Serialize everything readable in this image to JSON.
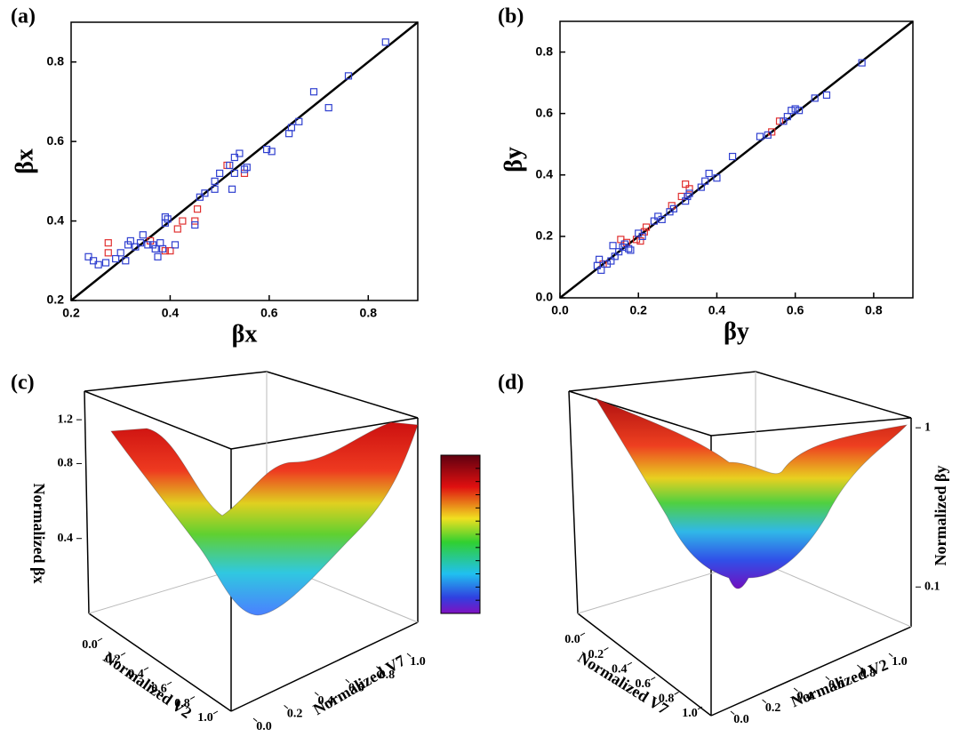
{
  "chart_data": [
    {
      "type": "scatter",
      "label": "(a)",
      "xlabel": "βx",
      "ylabel": "βx",
      "xlim": [
        0.2,
        0.9
      ],
      "ylim": [
        0.2,
        0.9
      ],
      "xticks": [
        0.2,
        0.4,
        0.6,
        0.8
      ],
      "yticks": [
        0.2,
        0.4,
        0.6,
        0.8
      ],
      "series": [
        {
          "color": "#e03030",
          "x": [
            0.275,
            0.275,
            0.36,
            0.39,
            0.4,
            0.415,
            0.425,
            0.45,
            0.455,
            0.515,
            0.55
          ],
          "values": [
            0.345,
            0.32,
            0.35,
            0.325,
            0.325,
            0.38,
            0.4,
            0.4,
            0.43,
            0.54,
            0.52
          ]
        },
        {
          "color": "#3040d0",
          "x": [
            0.235,
            0.245,
            0.255,
            0.27,
            0.29,
            0.3,
            0.31,
            0.315,
            0.32,
            0.33,
            0.34,
            0.345,
            0.355,
            0.365,
            0.37,
            0.375,
            0.38,
            0.385,
            0.39,
            0.39,
            0.395,
            0.41,
            0.45,
            0.46,
            0.47,
            0.49,
            0.49,
            0.5,
            0.52,
            0.525,
            0.53,
            0.53,
            0.54,
            0.55,
            0.555,
            0.595,
            0.605,
            0.64,
            0.645,
            0.66,
            0.69,
            0.72,
            0.76,
            0.835
          ],
          "values": [
            0.31,
            0.3,
            0.29,
            0.295,
            0.305,
            0.32,
            0.3,
            0.34,
            0.35,
            0.335,
            0.345,
            0.365,
            0.34,
            0.34,
            0.33,
            0.31,
            0.345,
            0.33,
            0.41,
            0.395,
            0.405,
            0.34,
            0.39,
            0.46,
            0.47,
            0.48,
            0.5,
            0.52,
            0.54,
            0.48,
            0.56,
            0.52,
            0.57,
            0.53,
            0.535,
            0.58,
            0.575,
            0.62,
            0.635,
            0.65,
            0.725,
            0.685,
            0.765,
            0.85
          ]
        }
      ]
    },
    {
      "type": "scatter",
      "label": "(b)",
      "xlabel": "βy",
      "ylabel": "βy",
      "xlim": [
        0,
        0.9
      ],
      "ylim": [
        0,
        0.9
      ],
      "xticks": [
        {
          "value": 0,
          "label": "0.0"
        },
        0.2,
        0.4,
        0.6,
        0.8
      ],
      "yticks": [
        {
          "value": 0,
          "label": "0.0"
        },
        0.2,
        0.4,
        0.6,
        0.8
      ],
      "series": [
        {
          "color": "#e03030",
          "x": [
            0.11,
            0.155,
            0.17,
            0.195,
            0.205,
            0.215,
            0.22,
            0.285,
            0.31,
            0.32,
            0.33,
            0.54,
            0.56
          ],
          "values": [
            0.11,
            0.19,
            0.18,
            0.19,
            0.185,
            0.215,
            0.23,
            0.3,
            0.33,
            0.37,
            0.355,
            0.54,
            0.575
          ]
        },
        {
          "color": "#3040d0",
          "x": [
            0.095,
            0.1,
            0.105,
            0.12,
            0.13,
            0.135,
            0.14,
            0.15,
            0.16,
            0.165,
            0.175,
            0.18,
            0.2,
            0.21,
            0.24,
            0.25,
            0.26,
            0.28,
            0.29,
            0.32,
            0.325,
            0.33,
            0.36,
            0.37,
            0.38,
            0.4,
            0.44,
            0.51,
            0.53,
            0.57,
            0.58,
            0.59,
            0.6,
            0.61,
            0.65,
            0.68,
            0.77
          ],
          "values": [
            0.105,
            0.125,
            0.09,
            0.11,
            0.12,
            0.17,
            0.135,
            0.15,
            0.165,
            0.175,
            0.16,
            0.155,
            0.21,
            0.2,
            0.25,
            0.265,
            0.255,
            0.28,
            0.29,
            0.315,
            0.33,
            0.34,
            0.36,
            0.38,
            0.405,
            0.39,
            0.46,
            0.525,
            0.53,
            0.575,
            0.59,
            0.61,
            0.615,
            0.61,
            0.65,
            0.66,
            0.765
          ]
        }
      ]
    },
    {
      "type": "surface3d",
      "label": "(c)",
      "xlabel": "Normalized V2",
      "ylabel": "Normalized V7",
      "zlabel": "Normalized βx",
      "xlim": [
        0,
        1
      ],
      "ylim": [
        0,
        1
      ],
      "zlim": [
        0.2,
        1.5
      ],
      "zscale": "log",
      "colorbar": true,
      "xticks": [
        {
          "value": 0,
          "label": "0.0"
        },
        0.2,
        0.4,
        0.6,
        0.8,
        {
          "value": 1,
          "label": "1.0"
        }
      ],
      "yticks": [
        {
          "value": 0,
          "label": "0.0"
        },
        0.2,
        0.4,
        0.6,
        0.8,
        {
          "value": 1,
          "label": "1.0"
        }
      ],
      "zticks": [
        0.4,
        0.8,
        1.2
      ]
    },
    {
      "type": "surface3d",
      "label": "(d)",
      "xlabel": "Normalized V7",
      "ylabel": "Normalized V2",
      "zlabel": "Normalized βy",
      "xlim": [
        0,
        1
      ],
      "ylim": [
        0,
        1
      ],
      "zlim": [
        0.06,
        1.4
      ],
      "zscale": "log",
      "colorbar": false,
      "xticks": [
        {
          "value": 0,
          "label": "0.0"
        },
        0.2,
        0.4,
        0.6,
        0.8,
        {
          "value": 1,
          "label": "1.0"
        }
      ],
      "yticks": [
        {
          "value": 0,
          "label": "0.0"
        },
        0.2,
        0.4,
        0.6,
        0.8,
        {
          "value": 1,
          "label": "1.0"
        }
      ],
      "zticks": [
        0.1,
        1
      ]
    }
  ]
}
